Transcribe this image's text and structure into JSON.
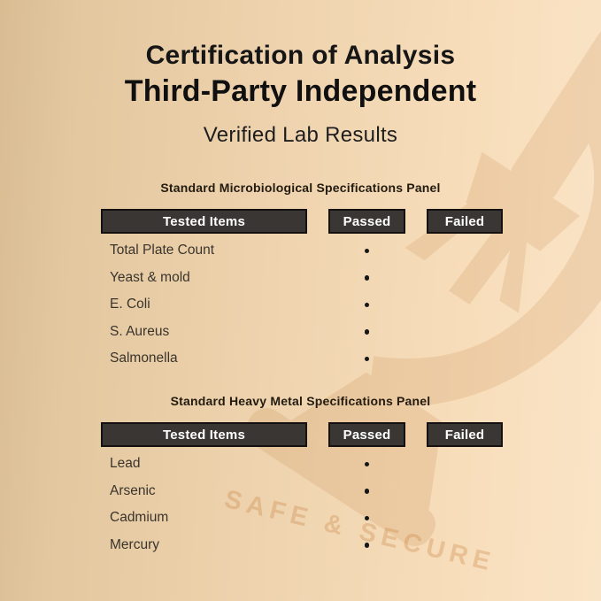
{
  "header": {
    "line1": "Certification of Analysis",
    "line2": "Third-Party Independent",
    "line3": "Verified Lab Results"
  },
  "watermark": {
    "text": "SAFE & SECURE",
    "icon": "microscope-icon"
  },
  "colors": {
    "background_left": "#d9bc92",
    "background_right": "#fae4c7",
    "header_box_fill": "#3a3633",
    "header_box_border": "#141110",
    "header_box_text": "#ffffff",
    "title_text": "#101010",
    "row_text": "#3a342c",
    "panel_title_text": "#231b10",
    "pass_dot": "#171717",
    "watermark_tint": "#bf7a39"
  },
  "panels": [
    {
      "title": "Standard Microbiological Specifications Panel",
      "columns": [
        "Tested Items",
        "Passed",
        "Failed"
      ],
      "rows": [
        {
          "item": "Total Plate Count",
          "passed": true,
          "failed": false
        },
        {
          "item": "Yeast & mold",
          "passed": true,
          "failed": false
        },
        {
          "item": "E. Coli",
          "passed": true,
          "failed": false
        },
        {
          "item": "S. Aureus",
          "passed": true,
          "failed": false
        },
        {
          "item": "Salmonella",
          "passed": true,
          "failed": false
        }
      ]
    },
    {
      "title": "Standard Heavy Metal Specifications Panel",
      "columns": [
        "Tested Items",
        "Passed",
        "Failed"
      ],
      "rows": [
        {
          "item": "Lead",
          "passed": true,
          "failed": false
        },
        {
          "item": "Arsenic",
          "passed": true,
          "failed": false
        },
        {
          "item": "Cadmium",
          "passed": true,
          "failed": false
        },
        {
          "item": "Mercury",
          "passed": true,
          "failed": false
        }
      ]
    }
  ]
}
